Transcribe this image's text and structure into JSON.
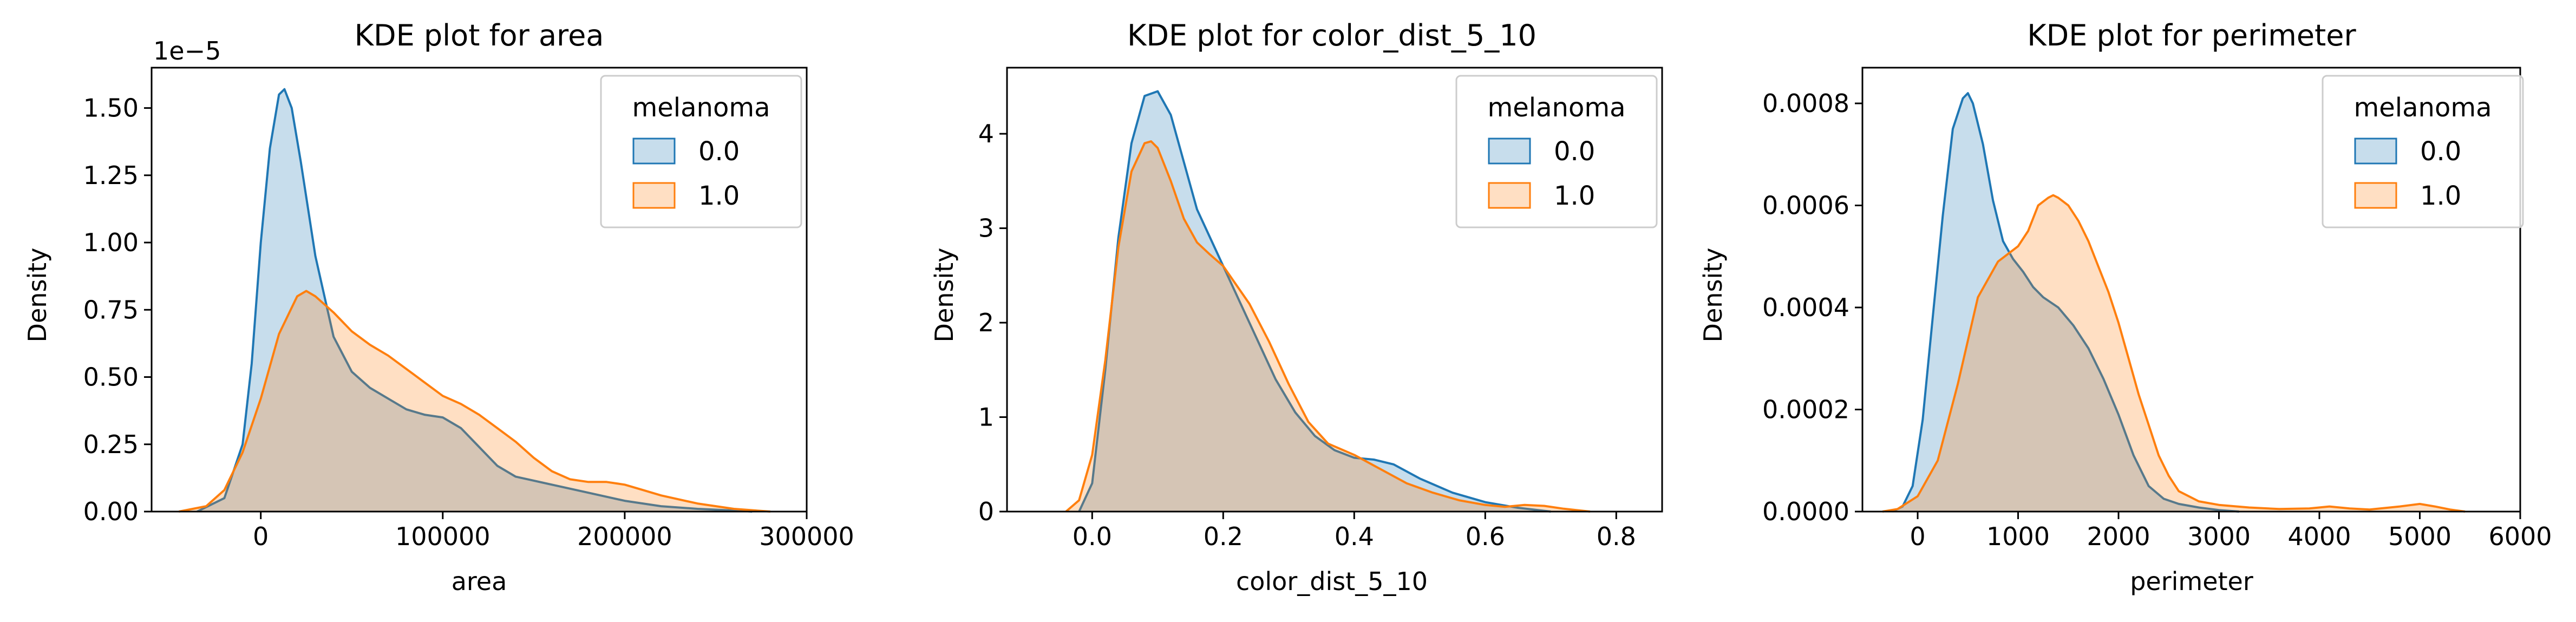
{
  "chart_data": [
    {
      "type": "area",
      "title": "KDE plot for area",
      "xlabel": "area",
      "ylabel": "Density",
      "offset_label": "1e−5",
      "xlim": [
        -60000,
        300000
      ],
      "ylim": [
        0,
        1.65
      ],
      "xticks": [
        0,
        100000,
        200000,
        300000
      ],
      "xtick_labels": [
        "0",
        "100000",
        "200000",
        "300000"
      ],
      "yticks": [
        0.0,
        0.25,
        0.5,
        0.75,
        1.0,
        1.25,
        1.5
      ],
      "ytick_labels": [
        "0.00",
        "0.25",
        "0.50",
        "0.75",
        "1.00",
        "1.25",
        "1.50"
      ],
      "legend": {
        "title": "melanoma",
        "position": "top-right"
      },
      "series": [
        {
          "name": "0.0",
          "color": "#1f77b4",
          "x": [
            -35000,
            -20000,
            -10000,
            -5000,
            0,
            5000,
            10000,
            13000,
            17000,
            22000,
            30000,
            40000,
            50000,
            60000,
            70000,
            80000,
            90000,
            100000,
            110000,
            120000,
            130000,
            140000,
            160000,
            180000,
            200000,
            220000,
            240000,
            260000,
            270000
          ],
          "y": [
            0.0,
            0.05,
            0.25,
            0.55,
            1.0,
            1.35,
            1.55,
            1.57,
            1.5,
            1.3,
            0.95,
            0.65,
            0.52,
            0.46,
            0.42,
            0.38,
            0.36,
            0.35,
            0.31,
            0.24,
            0.17,
            0.13,
            0.1,
            0.07,
            0.04,
            0.02,
            0.01,
            0.004,
            0.0
          ]
        },
        {
          "name": "1.0",
          "color": "#ff7f0e",
          "x": [
            -45000,
            -30000,
            -20000,
            -10000,
            0,
            10000,
            20000,
            25000,
            30000,
            40000,
            50000,
            60000,
            70000,
            80000,
            90000,
            100000,
            110000,
            120000,
            130000,
            140000,
            150000,
            160000,
            170000,
            180000,
            190000,
            200000,
            210000,
            220000,
            240000,
            260000,
            280000
          ],
          "y": [
            0.0,
            0.02,
            0.08,
            0.22,
            0.42,
            0.66,
            0.8,
            0.82,
            0.8,
            0.74,
            0.67,
            0.62,
            0.58,
            0.53,
            0.48,
            0.43,
            0.4,
            0.36,
            0.31,
            0.26,
            0.2,
            0.15,
            0.12,
            0.11,
            0.11,
            0.1,
            0.08,
            0.06,
            0.03,
            0.01,
            0.0
          ]
        }
      ]
    },
    {
      "type": "area",
      "title": "KDE plot for color_dist_5_10",
      "xlabel": "color_dist_5_10",
      "ylabel": "Density",
      "xlim": [
        -0.13,
        0.87
      ],
      "ylim": [
        0,
        4.7
      ],
      "xticks": [
        0.0,
        0.2,
        0.4,
        0.6,
        0.8
      ],
      "xtick_labels": [
        "0.0",
        "0.2",
        "0.4",
        "0.6",
        "0.8"
      ],
      "yticks": [
        0,
        1,
        2,
        3,
        4
      ],
      "ytick_labels": [
        "0",
        "1",
        "2",
        "3",
        "4"
      ],
      "legend": {
        "title": "melanoma",
        "position": "top-right"
      },
      "series": [
        {
          "name": "0.0",
          "color": "#1f77b4",
          "x": [
            -0.02,
            0.0,
            0.02,
            0.04,
            0.06,
            0.08,
            0.1,
            0.12,
            0.14,
            0.16,
            0.18,
            0.2,
            0.22,
            0.25,
            0.28,
            0.31,
            0.34,
            0.37,
            0.4,
            0.43,
            0.46,
            0.5,
            0.55,
            0.6,
            0.65,
            0.7
          ],
          "y": [
            0.0,
            0.3,
            1.5,
            2.9,
            3.9,
            4.4,
            4.45,
            4.2,
            3.7,
            3.2,
            2.9,
            2.6,
            2.3,
            1.85,
            1.4,
            1.05,
            0.8,
            0.65,
            0.57,
            0.55,
            0.5,
            0.35,
            0.2,
            0.1,
            0.04,
            0.0
          ]
        },
        {
          "name": "1.0",
          "color": "#ff7f0e",
          "x": [
            -0.04,
            -0.02,
            0.0,
            0.02,
            0.04,
            0.06,
            0.08,
            0.09,
            0.1,
            0.12,
            0.14,
            0.16,
            0.18,
            0.2,
            0.22,
            0.24,
            0.27,
            0.3,
            0.33,
            0.36,
            0.4,
            0.44,
            0.48,
            0.52,
            0.56,
            0.6,
            0.63,
            0.66,
            0.69,
            0.72,
            0.76
          ],
          "y": [
            0.0,
            0.12,
            0.6,
            1.6,
            2.8,
            3.6,
            3.9,
            3.92,
            3.85,
            3.5,
            3.1,
            2.85,
            2.72,
            2.6,
            2.4,
            2.2,
            1.8,
            1.35,
            0.95,
            0.72,
            0.6,
            0.45,
            0.3,
            0.2,
            0.12,
            0.07,
            0.05,
            0.07,
            0.06,
            0.03,
            0.0
          ]
        }
      ]
    },
    {
      "type": "area",
      "title": "KDE plot for perimeter",
      "xlabel": "perimeter",
      "ylabel": "Density",
      "xlim": [
        -550,
        6000
      ],
      "ylim": [
        0,
        0.00087
      ],
      "xticks": [
        0,
        1000,
        2000,
        3000,
        4000,
        5000,
        6000
      ],
      "xtick_labels": [
        "0",
        "1000",
        "2000",
        "3000",
        "4000",
        "5000",
        "6000"
      ],
      "yticks": [
        0,
        0.0002,
        0.0004,
        0.0006,
        0.0008
      ],
      "ytick_labels": [
        "0.0000",
        "0.0002",
        "0.0004",
        "0.0006",
        "0.0008"
      ],
      "legend": {
        "title": "melanoma",
        "position": "top-right"
      },
      "series": [
        {
          "name": "0.0",
          "color": "#1f77b4",
          "x": [
            -250,
            -150,
            -50,
            50,
            150,
            250,
            350,
            450,
            500,
            550,
            650,
            750,
            850,
            950,
            1050,
            1150,
            1250,
            1400,
            1550,
            1700,
            1850,
            2000,
            2150,
            2300,
            2450,
            2600,
            2800,
            3000,
            3200
          ],
          "y": [
            0.0,
            1e-05,
            5e-05,
            0.00018,
            0.00038,
            0.00058,
            0.00075,
            0.00081,
            0.00082,
            0.0008,
            0.00072,
            0.00061,
            0.00053,
            0.000495,
            0.00047,
            0.00044,
            0.00042,
            0.0004,
            0.000365,
            0.00032,
            0.00026,
            0.00019,
            0.00011,
            5e-05,
            2.5e-05,
            1.5e-05,
            8e-06,
            3e-06,
            0.0
          ]
        },
        {
          "name": "1.0",
          "color": "#ff7f0e",
          "x": [
            -350,
            -200,
            0,
            200,
            400,
            600,
            800,
            1000,
            1100,
            1200,
            1300,
            1350,
            1400,
            1500,
            1600,
            1700,
            1800,
            1900,
            2000,
            2100,
            2200,
            2300,
            2400,
            2500,
            2600,
            2800,
            3000,
            3300,
            3600,
            3900,
            4100,
            4300,
            4500,
            4800,
            5000,
            5150,
            5300,
            5450
          ],
          "y": [
            0.0,
            5e-06,
            3e-05,
            0.0001,
            0.00025,
            0.00042,
            0.00049,
            0.00052,
            0.00055,
            0.0006,
            0.000615,
            0.00062,
            0.000615,
            0.0006,
            0.00057,
            0.00053,
            0.00048,
            0.00043,
            0.00037,
            0.0003,
            0.00023,
            0.00017,
            0.00011,
            7e-05,
            4e-05,
            2e-05,
            1.3e-05,
            8e-06,
            5e-06,
            6e-06,
            1e-05,
            6e-06,
            4e-06,
            1e-05,
            1.5e-05,
            1e-05,
            4e-06,
            0.0
          ]
        }
      ]
    }
  ]
}
